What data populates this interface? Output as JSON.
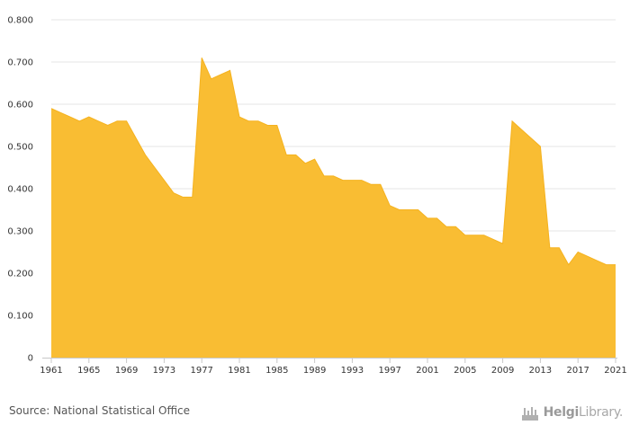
{
  "chart_data": {
    "type": "area",
    "x": [
      1961,
      1962,
      1963,
      1964,
      1965,
      1966,
      1967,
      1968,
      1969,
      1970,
      1971,
      1972,
      1973,
      1974,
      1975,
      1976,
      1977,
      1978,
      1979,
      1980,
      1981,
      1982,
      1983,
      1984,
      1985,
      1986,
      1987,
      1988,
      1989,
      1990,
      1991,
      1992,
      1993,
      1994,
      1995,
      1996,
      1997,
      1998,
      1999,
      2000,
      2001,
      2002,
      2003,
      2004,
      2005,
      2006,
      2007,
      2008,
      2009,
      2010,
      2011,
      2012,
      2013,
      2014,
      2015,
      2016,
      2017,
      2018,
      2019,
      2020,
      2021
    ],
    "values": [
      0.59,
      0.58,
      0.57,
      0.56,
      0.57,
      0.56,
      0.55,
      0.56,
      0.56,
      0.52,
      0.48,
      0.45,
      0.42,
      0.39,
      0.38,
      0.38,
      0.71,
      0.66,
      0.67,
      0.68,
      0.57,
      0.56,
      0.56,
      0.55,
      0.55,
      0.48,
      0.48,
      0.46,
      0.47,
      0.43,
      0.43,
      0.42,
      0.42,
      0.42,
      0.41,
      0.41,
      0.36,
      0.35,
      0.35,
      0.35,
      0.33,
      0.33,
      0.31,
      0.31,
      0.29,
      0.29,
      0.29,
      0.28,
      0.27,
      0.56,
      0.54,
      0.52,
      0.5,
      0.26,
      0.26,
      0.22,
      0.25,
      0.24,
      0.23,
      0.22,
      0.22
    ],
    "x_tick_labels": [
      "1961",
      "1965",
      "1969",
      "1973",
      "1977",
      "1981",
      "1985",
      "1989",
      "1993",
      "1997",
      "2001",
      "2005",
      "2009",
      "2013",
      "2017",
      "2021"
    ],
    "y_tick_labels": [
      "0",
      "0.100",
      "0.200",
      "0.300",
      "0.400",
      "0.500",
      "0.600",
      "0.700",
      "0.800"
    ],
    "ylim": [
      0,
      0.8
    ],
    "xlim": [
      1961,
      2021
    ],
    "title": "",
    "xlabel": "",
    "ylabel": "",
    "grid": true,
    "fill_color": "#f9bd33",
    "line_color": "#f5b21e",
    "grid_color": "#e6e6e6"
  },
  "footer": {
    "source": "Source: National Statistical Office"
  },
  "brand": {
    "name_part1": "Helgi",
    "name_part2": "Library",
    "icon": "helgi-library-logo-icon"
  }
}
